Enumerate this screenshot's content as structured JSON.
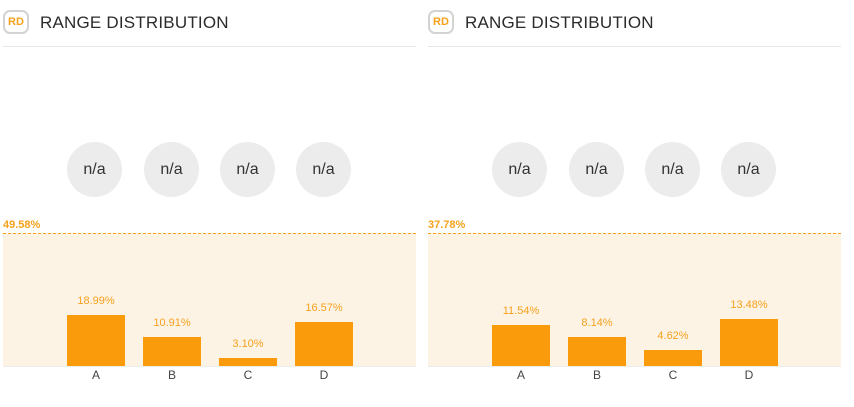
{
  "panels": [
    {
      "badge": "RD",
      "title": "RANGE DISTRIBUTION",
      "circles": [
        "n/a",
        "n/a",
        "n/a",
        "n/a"
      ],
      "max_label": "49.58%",
      "accent_color": "#f99b0b",
      "band_color": "#fdf3e5"
    },
    {
      "badge": "RD",
      "title": "RANGE DISTRIBUTION",
      "circles": [
        "n/a",
        "n/a",
        "n/a",
        "n/a"
      ],
      "max_label": "37.78%",
      "accent_color": "#f99b0b",
      "band_color": "#fdf3e5"
    }
  ],
  "chart_data": [
    {
      "type": "bar",
      "title": "RANGE DISTRIBUTION",
      "categories": [
        "A",
        "B",
        "C",
        "D"
      ],
      "values": [
        18.99,
        10.91,
        3.1,
        16.57
      ],
      "value_labels": [
        "18.99%",
        "10.91%",
        "3.10%",
        "16.57%"
      ],
      "max_line": 49.58,
      "ylim": [
        0,
        49.58
      ],
      "xlabel": "",
      "ylabel": "",
      "grid": false
    },
    {
      "type": "bar",
      "title": "RANGE DISTRIBUTION",
      "categories": [
        "A",
        "B",
        "C",
        "D"
      ],
      "values": [
        11.54,
        8.14,
        4.62,
        13.48
      ],
      "value_labels": [
        "11.54%",
        "8.14%",
        "4.62%",
        "13.48%"
      ],
      "max_line": 37.78,
      "ylim": [
        0,
        37.78
      ],
      "xlabel": "",
      "ylabel": "",
      "grid": false
    }
  ]
}
